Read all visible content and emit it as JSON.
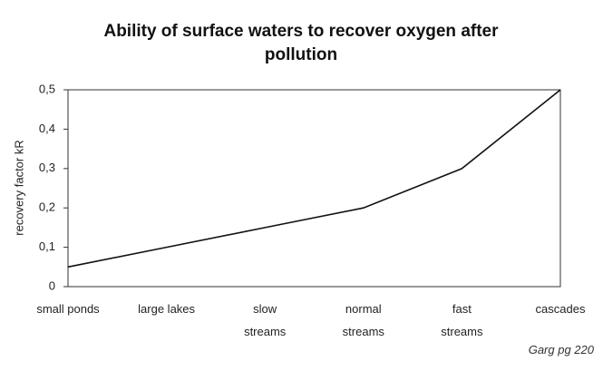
{
  "chart_data": {
    "type": "line",
    "title": "Ability of surface waters to recover oxygen after pollution",
    "y_label": "recovery factor kR",
    "annotation": "Garg pg 220",
    "categories": [
      "small ponds",
      "large lakes",
      "slow streams",
      "normal streams",
      "fast streams",
      "cascades"
    ],
    "series": [
      {
        "name": "recovery factor kR",
        "color": "#111111",
        "values": [
          0.05,
          0.1,
          0.15,
          0.2,
          0.3,
          0.5
        ]
      }
    ],
    "ylim": [
      0,
      0.5
    ],
    "yticks": [
      0,
      {
        "value": 0.1,
        "label": "0,1"
      },
      {
        "value": 0.2,
        "label": "0,2"
      },
      {
        "value": 0.3,
        "label": "0,3"
      },
      {
        "value": 0.4,
        "label": "0,4"
      },
      {
        "value": 0.5,
        "label": "0,5"
      }
    ]
  }
}
